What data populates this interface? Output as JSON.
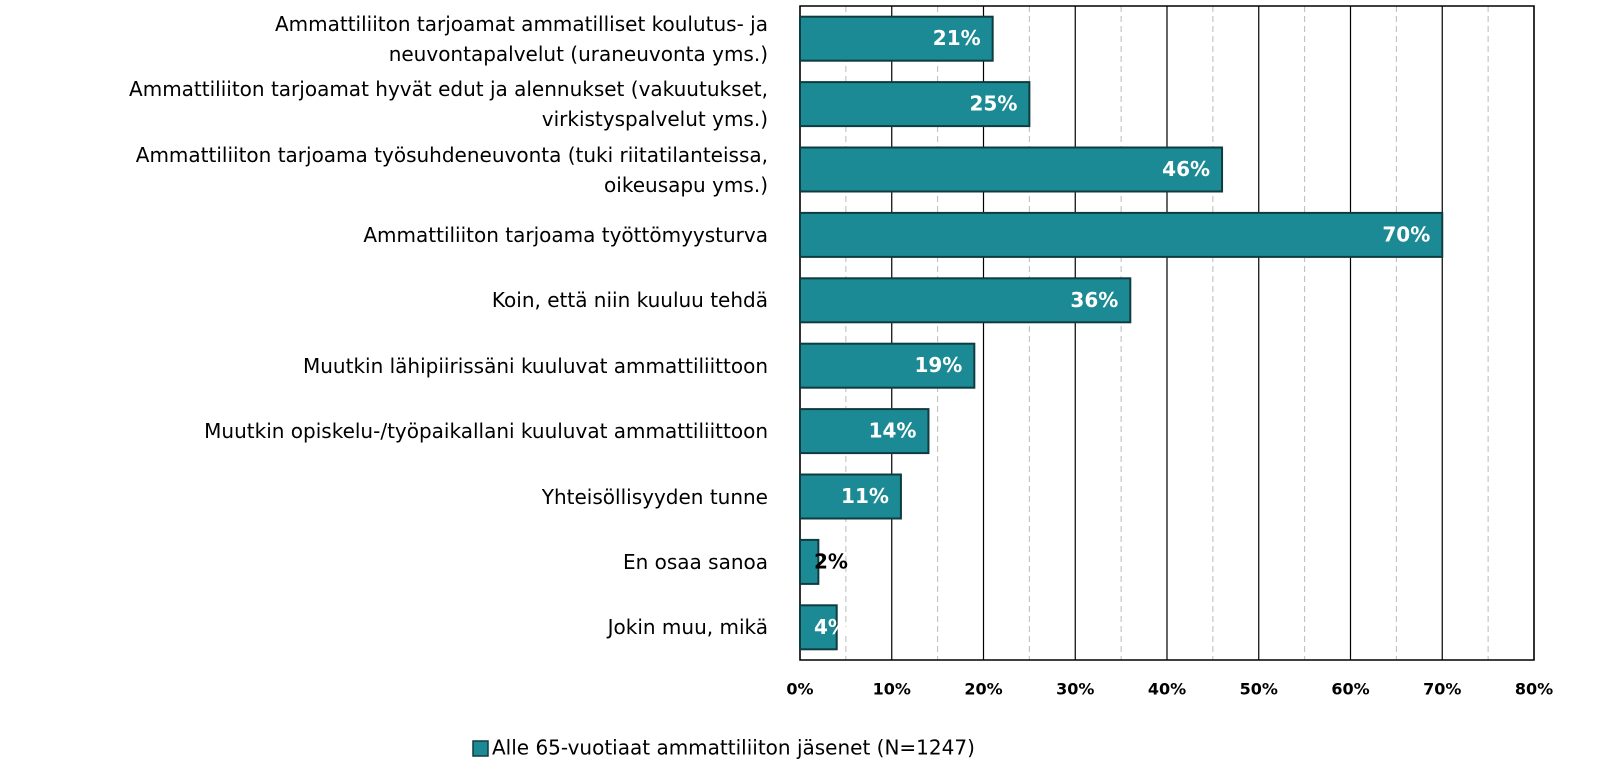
{
  "chart_data": {
    "type": "barh",
    "categories": [
      "Ammattiliiton tarjoamat ammatilliset koulutus- ja\nneuvontapalvelut (uraneuvonta yms.)",
      "Ammattiliiton tarjoamat hyvät edut ja alennukset (vakuutukset,\nvirkistyspalvelut yms.)",
      "Ammattiliiton tarjoama työsuhdeneuvonta (tuki riitatilanteissa,\noikeusapu yms.)",
      "Ammattiliiton tarjoama työttömyysturva",
      "Koin, että niin kuuluu tehdä",
      "Muutkin lähipiirissäni kuuluvat ammattiliittoon",
      "Muutkin opiskelu-/työpaikallani kuuluvat ammattiliittoon",
      "Yhteisöllisyyden tunne",
      "En osaa sanoa",
      "Jokin muu, mikä"
    ],
    "series": [
      {
        "name": "Alle 65-vuotiaat ammattiliiton jäsenet (N=1247)",
        "color": "#1b8a94",
        "values": [
          21,
          25,
          46,
          70,
          36,
          19,
          14,
          11,
          2,
          4
        ],
        "value_labels": [
          "21%",
          "25%",
          "46%",
          "70%",
          "36%",
          "19%",
          "14%",
          "11%",
          "2%",
          "4%"
        ]
      }
    ],
    "xlim": [
      0,
      80
    ],
    "xticks": [
      {
        "value": 0,
        "label": "0%"
      },
      {
        "value": 10,
        "label": "10%"
      },
      {
        "value": 20,
        "label": "20%"
      },
      {
        "value": 30,
        "label": "30%"
      },
      {
        "value": 40,
        "label": "40%"
      },
      {
        "value": 50,
        "label": "50%"
      },
      {
        "value": 60,
        "label": "60%"
      },
      {
        "value": 70,
        "label": "70%"
      },
      {
        "value": 80,
        "label": "80%"
      }
    ],
    "xminorticks": [
      5,
      15,
      25,
      35,
      45,
      55,
      65,
      75
    ],
    "grid": true,
    "legend": "bottom"
  }
}
